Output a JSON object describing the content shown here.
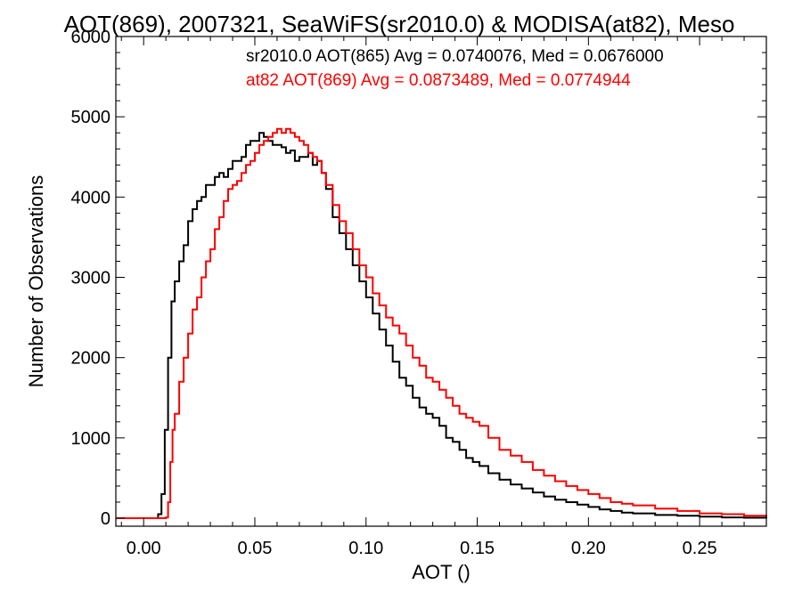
{
  "chart_data": {
    "type": "line",
    "title": "AOT(869), 2007321, SeaWiFS(sr2010.0) & MODISA(at82), Meso",
    "xlabel": "AOT ()",
    "ylabel": "Number of Observations",
    "xlim": [
      -0.0125,
      0.28
    ],
    "ylim": [
      -100,
      6000
    ],
    "xticks": [
      0.0,
      0.05,
      0.1,
      0.15,
      0.2,
      0.25
    ],
    "xtick_labels": [
      "0.00",
      "0.05",
      "0.10",
      "0.15",
      "0.20",
      "0.25"
    ],
    "yticks": [
      0,
      1000,
      2000,
      3000,
      4000,
      5000,
      6000
    ],
    "ytick_labels": [
      "0",
      "1000",
      "2000",
      "3000",
      "4000",
      "5000",
      "6000"
    ],
    "grid": false,
    "legend_position": "top-right",
    "annotations": [
      {
        "text": "sr2010.0 AOT(865) Avg = 0.0740076, Med = 0.0676000",
        "color": "#000000"
      },
      {
        "text": "at82 AOT(869) Avg = 0.0873489, Med = 0.0774944",
        "color": "#ff0000"
      }
    ],
    "series": [
      {
        "color": "#000000",
        "x": [
          -0.0125,
          0.0,
          0.0035,
          0.0055,
          0.0065,
          0.008,
          0.0095,
          0.011,
          0.0125,
          0.014,
          0.016,
          0.018,
          0.02,
          0.022,
          0.024,
          0.026,
          0.028,
          0.03,
          0.032,
          0.034,
          0.036,
          0.038,
          0.04,
          0.042,
          0.044,
          0.046,
          0.048,
          0.05,
          0.052,
          0.054,
          0.056,
          0.058,
          0.06,
          0.062,
          0.064,
          0.066,
          0.068,
          0.07,
          0.072,
          0.074,
          0.076,
          0.078,
          0.08,
          0.082,
          0.085,
          0.088,
          0.091,
          0.094,
          0.097,
          0.1,
          0.103,
          0.106,
          0.109,
          0.112,
          0.115,
          0.118,
          0.121,
          0.124,
          0.127,
          0.13,
          0.133,
          0.136,
          0.139,
          0.142,
          0.145,
          0.148,
          0.151,
          0.155,
          0.16,
          0.165,
          0.17,
          0.175,
          0.18,
          0.185,
          0.19,
          0.195,
          0.2,
          0.205,
          0.21,
          0.215,
          0.22,
          0.23,
          0.24,
          0.25,
          0.26,
          0.27,
          0.28
        ],
        "y": [
          0,
          0,
          0,
          0,
          50,
          300,
          1100,
          2000,
          2700,
          2950,
          3200,
          3400,
          3700,
          3850,
          3950,
          4000,
          4150,
          4150,
          4250,
          4300,
          4250,
          4350,
          4450,
          4450,
          4500,
          4650,
          4700,
          4700,
          4800,
          4750,
          4700,
          4650,
          4650,
          4620,
          4550,
          4580,
          4450,
          4500,
          4500,
          4550,
          4400,
          4450,
          4300,
          4100,
          3750,
          3550,
          3350,
          3150,
          2950,
          2750,
          2550,
          2350,
          2150,
          1950,
          1750,
          1650,
          1500,
          1380,
          1300,
          1250,
          1150,
          1000,
          950,
          850,
          750,
          700,
          650,
          560,
          480,
          420,
          370,
          320,
          270,
          230,
          200,
          170,
          140,
          110,
          90,
          70,
          60,
          40,
          30,
          20,
          10,
          5,
          0
        ]
      },
      {
        "color": "#ff0000",
        "x": [
          -0.0125,
          0.0,
          0.005,
          0.009,
          0.01,
          0.011,
          0.012,
          0.013,
          0.014,
          0.016,
          0.018,
          0.02,
          0.022,
          0.024,
          0.026,
          0.028,
          0.03,
          0.032,
          0.034,
          0.036,
          0.038,
          0.04,
          0.042,
          0.044,
          0.046,
          0.048,
          0.05,
          0.052,
          0.054,
          0.056,
          0.058,
          0.06,
          0.062,
          0.064,
          0.066,
          0.068,
          0.07,
          0.072,
          0.074,
          0.076,
          0.078,
          0.08,
          0.082,
          0.085,
          0.088,
          0.091,
          0.094,
          0.097,
          0.1,
          0.103,
          0.106,
          0.109,
          0.112,
          0.115,
          0.118,
          0.121,
          0.124,
          0.127,
          0.13,
          0.133,
          0.136,
          0.139,
          0.142,
          0.145,
          0.148,
          0.151,
          0.155,
          0.16,
          0.165,
          0.17,
          0.175,
          0.18,
          0.185,
          0.19,
          0.195,
          0.2,
          0.205,
          0.21,
          0.215,
          0.22,
          0.23,
          0.24,
          0.25,
          0.26,
          0.27,
          0.28
        ],
        "y": [
          0,
          0,
          0,
          0,
          10,
          200,
          700,
          1100,
          1300,
          1700,
          2000,
          2300,
          2600,
          2750,
          3000,
          3200,
          3350,
          3600,
          3750,
          3950,
          4100,
          4150,
          4200,
          4300,
          4400,
          4450,
          4550,
          4650,
          4700,
          4750,
          4800,
          4850,
          4800,
          4850,
          4800,
          4750,
          4700,
          4650,
          4550,
          4500,
          4450,
          4300,
          4150,
          3900,
          3700,
          3550,
          3350,
          3150,
          3000,
          2800,
          2650,
          2500,
          2400,
          2300,
          2150,
          2000,
          1900,
          1750,
          1700,
          1600,
          1500,
          1400,
          1300,
          1250,
          1200,
          1150,
          1000,
          850,
          780,
          700,
          600,
          530,
          460,
          400,
          350,
          300,
          250,
          200,
          180,
          160,
          120,
          90,
          60,
          50,
          30,
          20
        ]
      }
    ]
  }
}
